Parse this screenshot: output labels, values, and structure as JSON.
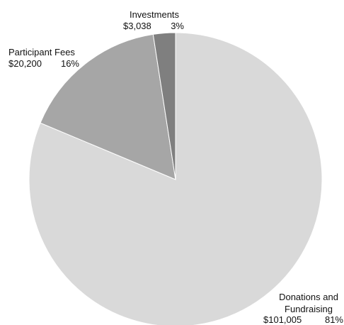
{
  "chart_data": {
    "type": "pie",
    "title": "",
    "slices": [
      {
        "label": "Donations and Fundraising",
        "label_lines": [
          "Donations and",
          "Fundraising"
        ],
        "value": 101005,
        "value_text": "$101,005",
        "percent_text": "81%",
        "color": "#d9d9d9"
      },
      {
        "label": "Participant Fees",
        "label_lines": [
          "Participant Fees"
        ],
        "value": 20200,
        "value_text": "$20,200",
        "percent_text": "16%",
        "color": "#a6a6a6"
      },
      {
        "label": "Investments",
        "label_lines": [
          "Investments"
        ],
        "value": 3038,
        "value_text": "$3,038",
        "percent_text": "3%",
        "color": "#7f7f7f"
      }
    ],
    "start_angle_deg": 0,
    "direction": "clockwise",
    "legend": "none"
  }
}
